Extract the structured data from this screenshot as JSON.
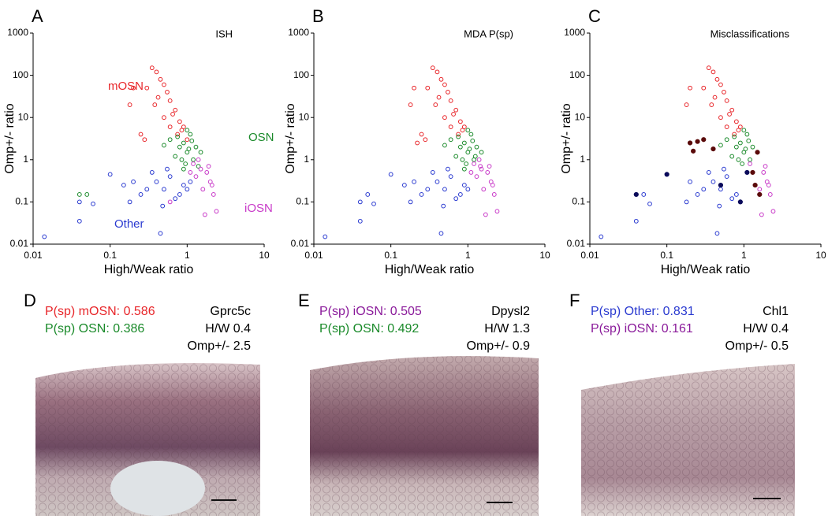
{
  "chart_data": [
    {
      "panel": "A",
      "type": "scatter",
      "title": "ISH",
      "xlabel": "High/Weak ratio",
      "ylabel": "Omp+/- ratio",
      "xscale": "log",
      "yscale": "log",
      "xlim": [
        0.01,
        10
      ],
      "ylim": [
        0.01,
        1000
      ],
      "xticks": [
        0.01,
        0.1,
        1,
        10
      ],
      "yticks": [
        0.01,
        0.1,
        1,
        10,
        100,
        1000
      ],
      "series": [
        {
          "name": "mOSN",
          "color": "#e8262a",
          "x": [
            0.35,
            0.4,
            0.45,
            0.5,
            0.55,
            0.6,
            0.3,
            0.2,
            0.18,
            0.25,
            0.7,
            0.8,
            0.9,
            0.65,
            0.5,
            0.42,
            0.75,
            1.0,
            0.38,
            0.28,
            0.6,
            0.85
          ],
          "values": [
            150,
            120,
            80,
            60,
            40,
            25,
            50,
            50,
            20,
            4,
            15,
            8,
            6,
            12,
            10,
            30,
            4,
            3,
            20,
            3,
            6,
            5
          ]
        },
        {
          "name": "OSN",
          "color": "#1a8a2a",
          "x": [
            0.6,
            0.8,
            1.0,
            1.2,
            0.9,
            1.1,
            1.3,
            0.7,
            0.5,
            1.5,
            0.95,
            1.05,
            0.75,
            1.4,
            0.85,
            1.15,
            0.04,
            0.05,
            0.9,
            1.0
          ],
          "values": [
            3,
            2,
            1.5,
            1,
            2.5,
            4,
            2,
            1.2,
            2.2,
            1.5,
            0.8,
            1.8,
            3.5,
            0.7,
            1,
            2.8,
            0.15,
            0.15,
            0.6,
            5
          ]
        },
        {
          "name": "iOSN",
          "color": "#c83ac8",
          "x": [
            1.2,
            1.5,
            1.8,
            2.0,
            1.6,
            1.3,
            2.2,
            2.4,
            1.7,
            1.9,
            1.4,
            2.1,
            0.6,
            1.1
          ],
          "values": [
            0.8,
            0.6,
            0.5,
            0.3,
            0.2,
            0.4,
            0.15,
            0.06,
            0.05,
            0.7,
            1,
            0.25,
            0.1,
            0.5
          ]
        },
        {
          "name": "Other",
          "color": "#2a3ad0",
          "x": [
            0.014,
            0.04,
            0.04,
            0.06,
            0.1,
            0.18,
            0.2,
            0.3,
            0.35,
            0.4,
            0.5,
            0.6,
            0.8,
            1.0,
            0.45,
            0.7,
            0.55,
            0.25,
            0.15,
            0.48,
            0.9,
            1.1
          ],
          "values": [
            0.015,
            0.035,
            0.1,
            0.09,
            0.45,
            0.1,
            0.3,
            0.2,
            0.5,
            0.3,
            0.2,
            0.4,
            0.15,
            0.2,
            0.018,
            0.12,
            0.6,
            0.15,
            0.25,
            0.08,
            0.25,
            0.3
          ]
        }
      ]
    },
    {
      "panel": "B",
      "type": "scatter",
      "title": "MDA P(sp)",
      "xlabel": "High/Weak ratio",
      "ylabel": "Omp+/- ratio",
      "xscale": "log",
      "yscale": "log",
      "xlim": [
        0.01,
        10
      ],
      "ylim": [
        0.01,
        1000
      ],
      "xticks": [
        0.01,
        0.1,
        1,
        10
      ],
      "yticks": [
        0.01,
        0.1,
        1,
        10,
        100,
        1000
      ],
      "series": [
        {
          "color": "#e8262a",
          "x": [
            0.35,
            0.4,
            0.45,
            0.5,
            0.55,
            0.6,
            0.3,
            0.2,
            0.18,
            0.25,
            0.7,
            0.8,
            0.9,
            0.65,
            0.5,
            0.42,
            0.75,
            0.38,
            0.28,
            0.6,
            0.85,
            0.22
          ],
          "values": [
            150,
            120,
            80,
            60,
            40,
            25,
            50,
            50,
            20,
            4,
            15,
            8,
            6,
            12,
            10,
            30,
            4,
            20,
            3,
            6,
            5,
            2.5
          ]
        },
        {
          "color": "#1a8a2a",
          "x": [
            0.6,
            0.8,
            1.0,
            1.2,
            0.9,
            1.1,
            1.3,
            0.7,
            0.5,
            1.5,
            0.95,
            1.05,
            0.75,
            0.85,
            1.15,
            0.9,
            1.0,
            1.25
          ],
          "values": [
            3,
            2,
            1.5,
            1,
            2.5,
            4,
            2,
            1.2,
            2.2,
            1.5,
            0.8,
            1.8,
            3.5,
            1,
            2.8,
            0.6,
            5,
            1.2
          ]
        },
        {
          "color": "#c83ac8",
          "x": [
            1.2,
            1.5,
            1.8,
            2.0,
            1.6,
            1.3,
            2.2,
            2.4,
            1.7,
            1.9,
            1.4,
            2.1,
            1.1,
            1.45
          ],
          "values": [
            0.8,
            0.6,
            0.5,
            0.3,
            0.2,
            0.4,
            0.15,
            0.06,
            0.05,
            0.7,
            1,
            0.25,
            0.5,
            0.7
          ]
        },
        {
          "color": "#2a3ad0",
          "x": [
            0.014,
            0.04,
            0.04,
            0.05,
            0.06,
            0.1,
            0.18,
            0.2,
            0.3,
            0.35,
            0.4,
            0.5,
            0.6,
            0.8,
            1.0,
            0.45,
            0.7,
            0.55,
            0.25,
            0.15,
            0.48,
            0.9
          ],
          "values": [
            0.015,
            0.035,
            0.1,
            0.15,
            0.09,
            0.45,
            0.1,
            0.3,
            0.2,
            0.5,
            0.3,
            0.2,
            0.4,
            0.15,
            0.2,
            0.018,
            0.12,
            0.6,
            0.15,
            0.25,
            0.08,
            0.25
          ]
        }
      ]
    },
    {
      "panel": "C",
      "type": "scatter",
      "title": "Misclassifications",
      "xlabel": "High/Weak ratio",
      "ylabel": "Omp+/- ratio",
      "xscale": "log",
      "yscale": "log",
      "xlim": [
        0.01,
        10
      ],
      "ylim": [
        0.01,
        1000
      ],
      "xticks": [
        0.01,
        0.1,
        1,
        10
      ],
      "yticks": [
        0.01,
        0.1,
        1,
        10,
        100,
        1000
      ],
      "series": [
        {
          "color": "#e8262a",
          "x": [
            0.35,
            0.4,
            0.45,
            0.5,
            0.55,
            0.6,
            0.3,
            0.2,
            0.18,
            0.7,
            0.8,
            0.9,
            0.65,
            0.5,
            0.42,
            0.75,
            0.38,
            0.6,
            0.85
          ],
          "values": [
            150,
            120,
            80,
            60,
            40,
            25,
            50,
            50,
            20,
            15,
            8,
            6,
            12,
            10,
            30,
            4,
            20,
            6,
            5
          ]
        },
        {
          "color": "#1a8a2a",
          "x": [
            0.6,
            0.8,
            1.0,
            1.2,
            0.9,
            1.1,
            1.3,
            0.7,
            0.5,
            0.95,
            1.05,
            0.75,
            0.85,
            1.15,
            1.0
          ],
          "values": [
            3,
            2,
            1.5,
            1,
            2.5,
            4,
            2,
            1.2,
            2.2,
            0.8,
            1.8,
            3.5,
            1,
            2.8,
            5
          ]
        },
        {
          "color": "#c83ac8",
          "x": [
            1.2,
            1.8,
            2.0,
            1.6,
            2.2,
            2.4,
            1.7,
            1.9,
            2.1
          ],
          "values": [
            0.8,
            0.5,
            0.3,
            0.2,
            0.15,
            0.06,
            0.05,
            0.7,
            0.25
          ]
        },
        {
          "color": "#2a3ad0",
          "x": [
            0.014,
            0.04,
            0.05,
            0.06,
            0.18,
            0.2,
            0.3,
            0.35,
            0.4,
            0.5,
            0.6,
            0.8,
            0.45,
            0.7,
            0.55,
            0.25,
            0.48
          ],
          "values": [
            0.015,
            0.035,
            0.15,
            0.09,
            0.1,
            0.3,
            0.2,
            0.5,
            0.3,
            0.2,
            0.4,
            0.15,
            0.018,
            0.12,
            0.6,
            0.15,
            0.08
          ]
        },
        {
          "color": "#5a0a0a",
          "filled": true,
          "x": [
            0.2,
            0.25,
            0.3,
            0.4,
            1.3,
            1.5,
            1.6,
            1.4,
            0.22
          ],
          "values": [
            2.5,
            2.7,
            3,
            1.8,
            0.5,
            1.5,
            0.15,
            0.25,
            1.6
          ]
        },
        {
          "color": "#0a0a5a",
          "filled": true,
          "x": [
            0.1,
            0.04,
            0.9,
            1.1,
            0.5
          ],
          "values": [
            0.45,
            0.15,
            0.1,
            0.5,
            0.25
          ]
        }
      ]
    }
  ],
  "panels": [
    {
      "letter": "D",
      "lines": [
        {
          "text": "P(sp) mOSN: 0.586",
          "color": "#e8262a"
        },
        {
          "text": "P(sp) OSN: 0.386",
          "color": "#1a8a2a"
        }
      ],
      "info": [
        "Gprc5c",
        "H/W 0.4",
        "Omp+/- 2.5"
      ]
    },
    {
      "letter": "E",
      "lines": [
        {
          "text": "P(sp) iOSN: 0.505",
          "color": "#8a1a9a"
        },
        {
          "text": "P(sp) OSN: 0.492",
          "color": "#1a8a2a"
        }
      ],
      "info": [
        "Dpysl2",
        "H/W 1.3",
        "Omp+/- 0.9"
      ]
    },
    {
      "letter": "F",
      "lines": [
        {
          "text": "P(sp) Other: 0.831",
          "color": "#2a3ad0"
        },
        {
          "text": "P(sp) iOSN: 0.161",
          "color": "#8a1a9a"
        }
      ],
      "info": [
        "Chl1",
        "H/W 0.4",
        "Omp+/-  0.5"
      ]
    }
  ]
}
